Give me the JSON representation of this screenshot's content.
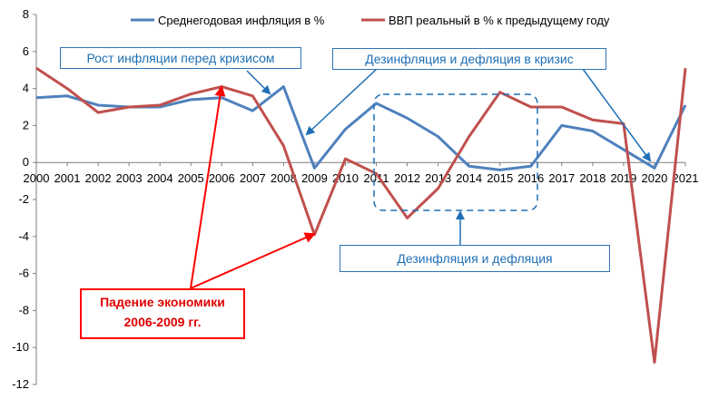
{
  "chart_data": {
    "type": "line",
    "x": [
      "2000",
      "2001",
      "2002",
      "2003",
      "2004",
      "2005",
      "2006",
      "2007",
      "2008",
      "2009",
      "2010",
      "2011",
      "2012",
      "2013",
      "2014",
      "2015",
      "2016",
      "2017",
      "2018",
      "2019",
      "2020",
      "2021"
    ],
    "yticks": [
      8,
      6,
      4,
      2,
      0,
      -2,
      -4,
      -6,
      -8,
      -10,
      -12
    ],
    "ylim": [
      -12,
      8
    ],
    "grid": false,
    "legend_position": "top",
    "series": [
      {
        "name": "Среднегодовая инфляция в %",
        "color": "#4f81bd",
        "values": [
          3.5,
          3.6,
          3.1,
          3.0,
          3.0,
          3.4,
          3.5,
          2.8,
          4.1,
          -0.3,
          1.8,
          3.2,
          2.4,
          1.4,
          -0.2,
          -0.4,
          -0.2,
          2.0,
          1.7,
          0.7,
          -0.3,
          3.1
        ]
      },
      {
        "name": "ВВП реальный в % к предыдущему году",
        "color": "#c0504d",
        "values": [
          5.1,
          4.0,
          2.7,
          3.0,
          3.1,
          3.7,
          4.1,
          3.6,
          0.9,
          -3.9,
          0.2,
          -0.6,
          -3.0,
          -1.4,
          1.4,
          3.8,
          3.0,
          3.0,
          2.3,
          2.1,
          -10.8,
          5.1
        ]
      }
    ],
    "annotations": {
      "inflation_growth": "Рост инфляции перед кризисом",
      "disinflation_crisis": "Дезинфляция и дефляция в кризис",
      "disinflation": "Дезинфляция и дефляция",
      "decline_line1": "Падение экономики",
      "decline_line2": "2006-2009 гг."
    }
  }
}
